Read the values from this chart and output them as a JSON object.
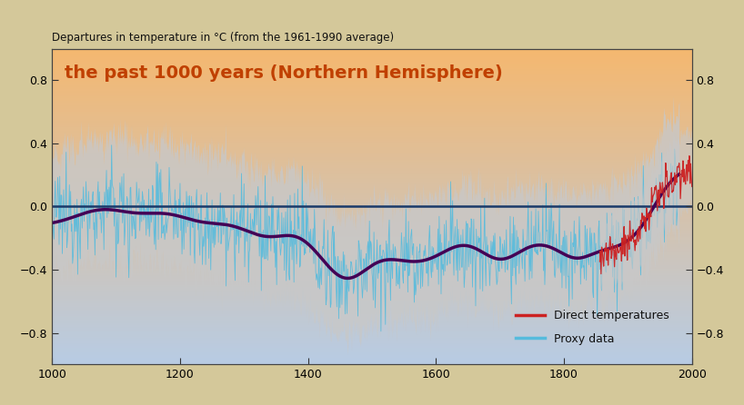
{
  "title": "the past 1000 years (Northern Hemisphere)",
  "title_color": "#c04000",
  "top_label": "Departures in temperature in °C (from the 1961-1990 average)",
  "xlim": [
    1000,
    2000
  ],
  "ylim": [
    -1.0,
    1.0
  ],
  "yticks": [
    -0.8,
    -0.4,
    0.0,
    0.4,
    0.8
  ],
  "xticks": [
    1000,
    1200,
    1400,
    1600,
    1800,
    2000
  ],
  "bg_color_outer": "#d4c89a",
  "proxy_line_color": "#55bbdd",
  "direct_line_color": "#cc2222",
  "smooth_line_color": "#440055",
  "zero_line_color": "#1a3a6a",
  "legend_direct": "Direct temperatures",
  "legend_proxy": "Proxy data",
  "bg_top_color": "#f5b870",
  "bg_bottom_color": "#b8cce4"
}
